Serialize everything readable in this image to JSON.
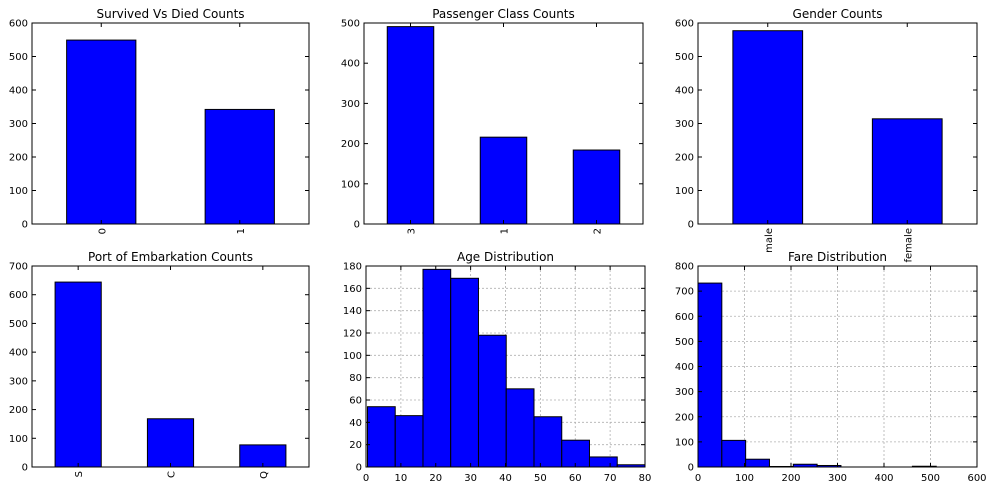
{
  "chart_data": [
    {
      "type": "bar",
      "title": "Survived Vs Died Counts",
      "categories": [
        "0",
        "1"
      ],
      "values": [
        549,
        342
      ],
      "ylim": [
        0,
        600
      ],
      "yticks": [
        0,
        100,
        200,
        300,
        400,
        500,
        600
      ],
      "xtick_rotation": "vertical",
      "grid": false,
      "bar_color": "#0000ff"
    },
    {
      "type": "bar",
      "title": "Passenger Class Counts",
      "categories": [
        "3",
        "1",
        "2"
      ],
      "values": [
        491,
        216,
        184
      ],
      "ylim": [
        0,
        500
      ],
      "yticks": [
        0,
        100,
        200,
        300,
        400,
        500
      ],
      "xtick_rotation": "vertical",
      "grid": false,
      "bar_color": "#0000ff"
    },
    {
      "type": "bar",
      "title": "Gender Counts",
      "categories": [
        "male",
        "female"
      ],
      "values": [
        577,
        314
      ],
      "ylim": [
        0,
        600
      ],
      "yticks": [
        0,
        100,
        200,
        300,
        400,
        500,
        600
      ],
      "xtick_rotation": "vertical",
      "grid": false,
      "bar_color": "#0000ff"
    },
    {
      "type": "bar",
      "title": "Port of Embarkation Counts",
      "categories": [
        "S",
        "C",
        "Q"
      ],
      "values": [
        644,
        168,
        77
      ],
      "ylim": [
        0,
        700
      ],
      "yticks": [
        0,
        100,
        200,
        300,
        400,
        500,
        600,
        700
      ],
      "xtick_rotation": "vertical",
      "grid": false,
      "bar_color": "#0000ff"
    },
    {
      "type": "histogram",
      "title": "Age Distribution",
      "bin_edges": [
        0.42,
        8.38,
        16.34,
        24.29,
        32.25,
        40.21,
        48.17,
        56.13,
        64.08,
        72.04,
        80.0
      ],
      "counts": [
        54,
        46,
        177,
        169,
        118,
        70,
        45,
        24,
        9,
        2
      ],
      "xlim": [
        0,
        80
      ],
      "ylim": [
        0,
        180
      ],
      "xticks": [
        0,
        10,
        20,
        30,
        40,
        50,
        60,
        70,
        80
      ],
      "yticks": [
        0,
        20,
        40,
        60,
        80,
        100,
        120,
        140,
        160,
        180
      ],
      "grid": true,
      "bar_color": "#0000ff"
    },
    {
      "type": "histogram",
      "title": "Fare Distribution",
      "bin_edges": [
        0,
        51.23,
        102.47,
        153.7,
        204.93,
        256.16,
        307.4,
        358.63,
        409.86,
        461.1,
        512.33
      ],
      "counts": [
        732,
        106,
        31,
        2,
        11,
        6,
        0,
        0,
        0,
        3
      ],
      "xlim": [
        0,
        600
      ],
      "ylim": [
        0,
        800
      ],
      "xticks": [
        0,
        100,
        200,
        300,
        400,
        500,
        600
      ],
      "yticks": [
        0,
        100,
        200,
        300,
        400,
        500,
        600,
        700,
        800
      ],
      "grid": true,
      "bar_color": "#0000ff"
    }
  ]
}
